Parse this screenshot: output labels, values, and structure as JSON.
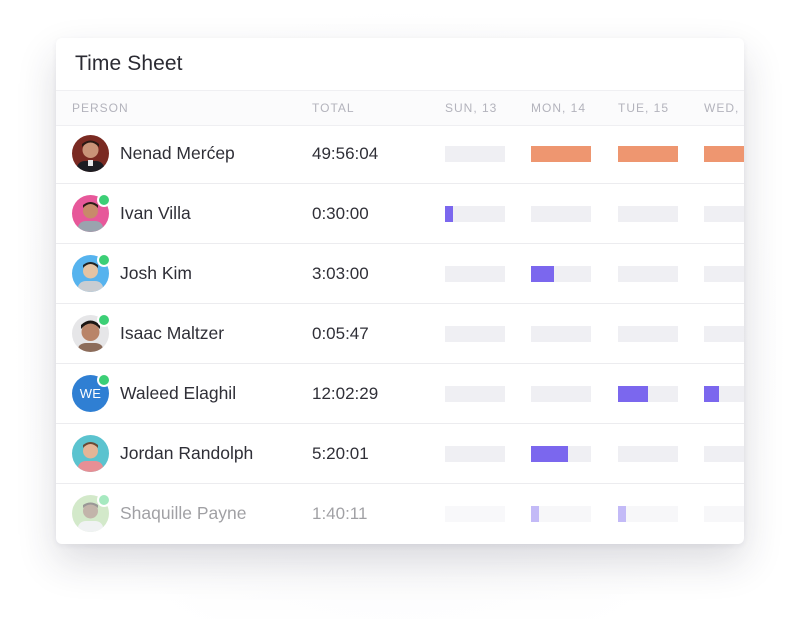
{
  "sheet": {
    "title": "Time Sheet",
    "columns": {
      "person": "PERSON",
      "total": "TOTAL",
      "days": [
        "SUN, 13",
        "MON, 14",
        "TUE, 15",
        "WED,"
      ]
    },
    "colors": {
      "bar_empty": "#efeff3",
      "bar_purple": "#7b67ee",
      "bar_orange": "#ee9670",
      "online": "#3ccf76"
    },
    "rows": [
      {
        "name": "Nenad Merćep",
        "total": "49:56:04",
        "online": false,
        "avatar": "photo",
        "day_fill": [
          0,
          1,
          1,
          1
        ],
        "fill_color": "orange"
      },
      {
        "name": "Ivan Villa",
        "total": "0:30:00",
        "online": true,
        "avatar": "photo",
        "day_fill": [
          0.13,
          0,
          0,
          0
        ],
        "fill_color": "purple"
      },
      {
        "name": "Josh Kim",
        "total": "3:03:00",
        "online": true,
        "avatar": "photo",
        "day_fill": [
          0,
          0.38,
          0,
          0
        ],
        "fill_color": "purple"
      },
      {
        "name": "Isaac Maltzer",
        "total": "0:05:47",
        "online": true,
        "avatar": "photo",
        "day_fill": [
          0,
          0,
          0,
          0
        ],
        "fill_color": "purple"
      },
      {
        "name": "Waleed Elaghil",
        "total": "12:02:29",
        "online": true,
        "avatar": "initials",
        "initials": "WE",
        "day_fill": [
          0,
          0,
          0.5,
          0.25
        ],
        "fill_color": "purple"
      },
      {
        "name": "Jordan Randolph",
        "total": "5:20:01",
        "online": false,
        "avatar": "photo",
        "day_fill": [
          0,
          0.62,
          0,
          0
        ],
        "fill_color": "purple"
      },
      {
        "name": "Shaquille Payne",
        "total": "1:40:11",
        "online": true,
        "avatar": "photo",
        "day_fill": [
          0,
          0.13,
          0.13,
          0
        ],
        "fill_color": "purple"
      }
    ]
  }
}
